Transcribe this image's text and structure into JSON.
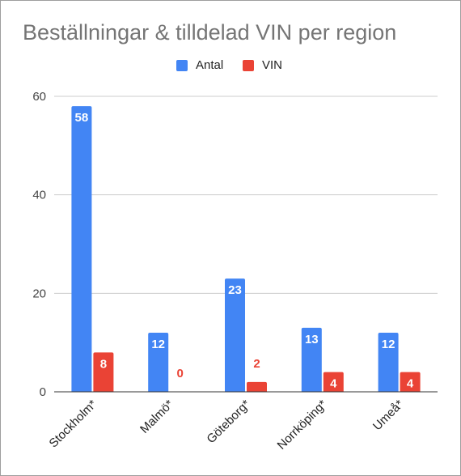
{
  "chart_data": {
    "type": "bar",
    "title": "Beställningar & tilldelad VIN per region",
    "categories": [
      "Stockholm*",
      "Malmö*",
      "Göteborg*",
      "Norrköping*",
      "Umeå*"
    ],
    "series": [
      {
        "name": "Antal",
        "values": [
          58,
          12,
          23,
          13,
          12
        ],
        "color": "#4285f4"
      },
      {
        "name": "VIN",
        "values": [
          8,
          0,
          2,
          4,
          4
        ],
        "color": "#ea4335"
      }
    ],
    "ylim": [
      0,
      60
    ],
    "yticks": [
      0,
      20,
      40,
      60
    ],
    "grid": true,
    "legend": "top-center",
    "data_labels": true
  }
}
